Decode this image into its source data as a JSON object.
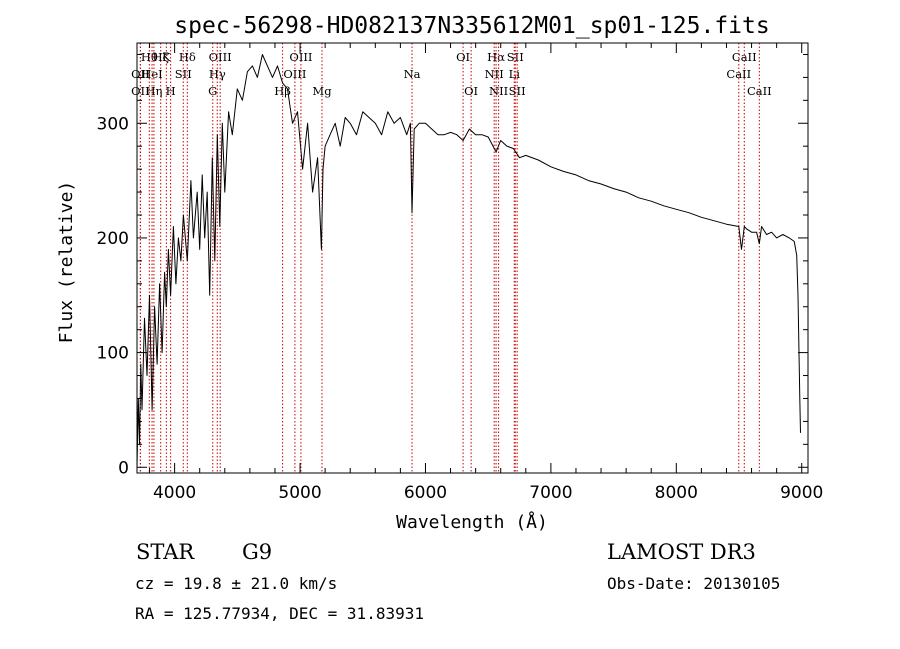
{
  "chart_data": {
    "type": "line",
    "title": "spec-56298-HD082137N335612M01_sp01-125.fits",
    "xlabel": "Wavelength (Å)",
    "ylabel": "Flux (relative)",
    "xlim": [
      3700,
      9050
    ],
    "ylim": [
      -5,
      370
    ],
    "x_ticks": [
      4000,
      5000,
      6000,
      7000,
      8000,
      9000
    ],
    "x_tick_labels": [
      "4000",
      "5000",
      "6000",
      "7000",
      "8000",
      "9000"
    ],
    "y_ticks": [
      0,
      100,
      200,
      300
    ],
    "y_tick_labels": [
      "0",
      "100",
      "200",
      "300"
    ],
    "x_minor_step": 200,
    "y_minor_step": 20,
    "line_color": "#000000",
    "marker_color": "#cc0000",
    "series": [
      {
        "name": "spectrum",
        "x": [
          3700,
          3710,
          3720,
          3730,
          3740,
          3760,
          3780,
          3800,
          3820,
          3840,
          3860,
          3880,
          3900,
          3920,
          3934,
          3950,
          3968,
          3990,
          4010,
          4030,
          4050,
          4070,
          4101,
          4130,
          4150,
          4180,
          4200,
          4220,
          4240,
          4260,
          4280,
          4300,
          4320,
          4340,
          4360,
          4380,
          4400,
          4430,
          4460,
          4500,
          4540,
          4580,
          4620,
          4660,
          4700,
          4740,
          4780,
          4820,
          4861,
          4900,
          4940,
          4980,
          5020,
          5060,
          5100,
          5140,
          5170,
          5183,
          5200,
          5240,
          5280,
          5320,
          5360,
          5400,
          5450,
          5500,
          5550,
          5600,
          5650,
          5700,
          5750,
          5800,
          5850,
          5880,
          5893,
          5910,
          5950,
          6000,
          6050,
          6100,
          6150,
          6200,
          6250,
          6300,
          6350,
          6400,
          6450,
          6500,
          6563,
          6600,
          6650,
          6700,
          6750,
          6800,
          6900,
          7000,
          7100,
          7200,
          7300,
          7400,
          7500,
          7600,
          7700,
          7800,
          7900,
          8000,
          8100,
          8200,
          8300,
          8400,
          8498,
          8520,
          8542,
          8560,
          8600,
          8640,
          8662,
          8680,
          8720,
          8760,
          8800,
          8850,
          8900,
          8940,
          8960,
          8970,
          8980,
          8985,
          8990
        ],
        "y": [
          0,
          60,
          20,
          90,
          50,
          130,
          80,
          150,
          50,
          140,
          90,
          160,
          100,
          170,
          140,
          190,
          150,
          210,
          160,
          200,
          180,
          220,
          180,
          250,
          200,
          240,
          190,
          255,
          200,
          240,
          150,
          270,
          180,
          290,
          210,
          300,
          240,
          310,
          290,
          330,
          320,
          345,
          350,
          340,
          360,
          350,
          340,
          350,
          335,
          330,
          300,
          310,
          260,
          300,
          240,
          270,
          190,
          260,
          280,
          290,
          300,
          280,
          305,
          300,
          290,
          310,
          305,
          300,
          290,
          310,
          300,
          305,
          290,
          300,
          222,
          295,
          300,
          300,
          295,
          290,
          290,
          292,
          290,
          285,
          295,
          290,
          290,
          288,
          275,
          285,
          280,
          278,
          270,
          272,
          268,
          262,
          258,
          255,
          250,
          247,
          243,
          240,
          235,
          232,
          228,
          225,
          222,
          218,
          215,
          212,
          210,
          190,
          210,
          208,
          205,
          205,
          195,
          210,
          203,
          205,
          200,
          203,
          200,
          197,
          185,
          150,
          90,
          60,
          30
        ]
      }
    ],
    "line_markers": [
      {
        "label": "Hθ",
        "x": 3798,
        "row": 1
      },
      {
        "label": "Hζ",
        "x": 3889,
        "row": 1
      },
      {
        "label": "K",
        "x": 3934,
        "row": 1
      },
      {
        "label": "Hδ",
        "x": 4101,
        "row": 1
      },
      {
        "label": "OII",
        "x": 3727,
        "row": 2
      },
      {
        "label": "HeI",
        "x": 3820,
        "row": 2
      },
      {
        "label": "SII",
        "x": 4069,
        "row": 2
      },
      {
        "label": "OII",
        "x": 3727,
        "row": 3
      },
      {
        "label": "Hη",
        "x": 3835,
        "row": 3
      },
      {
        "label": "H",
        "x": 3968,
        "row": 3
      },
      {
        "label": "OIII",
        "x": 4363,
        "row": 1
      },
      {
        "label": "Hγ",
        "x": 4340,
        "row": 2
      },
      {
        "label": "G",
        "x": 4304,
        "row": 3
      },
      {
        "label": "OIII",
        "x": 5007,
        "row": 1
      },
      {
        "label": "OIII",
        "x": 4959,
        "row": 2
      },
      {
        "label": "Hβ",
        "x": 4861,
        "row": 3
      },
      {
        "label": "Mg",
        "x": 5175,
        "row": 3
      },
      {
        "label": "Na",
        "x": 5893,
        "row": 2
      },
      {
        "label": "OI",
        "x": 6300,
        "row": 1
      },
      {
        "label": "OI",
        "x": 6364,
        "row": 3
      },
      {
        "label": "Hα",
        "x": 6563,
        "row": 1
      },
      {
        "label": "SII",
        "x": 6716,
        "row": 1
      },
      {
        "label": "NII",
        "x": 6548,
        "row": 2
      },
      {
        "label": "Li",
        "x": 6708,
        "row": 2
      },
      {
        "label": "NII",
        "x": 6583,
        "row": 3
      },
      {
        "label": "SII",
        "x": 6731,
        "row": 3
      },
      {
        "label": "CaII",
        "x": 8542,
        "row": 1
      },
      {
        "label": "CaII",
        "x": 8498,
        "row": 2
      },
      {
        "label": "CaII",
        "x": 8662,
        "row": 3
      }
    ]
  },
  "info": {
    "object_class": "STAR",
    "subclass": "G9",
    "survey": "LAMOST DR3",
    "redshift": "cz = 19.8 ± 21.0 km/s",
    "obs_date": "Obs-Date: 20130105",
    "coordinates": "RA = 125.77934, DEC =  31.83931"
  }
}
